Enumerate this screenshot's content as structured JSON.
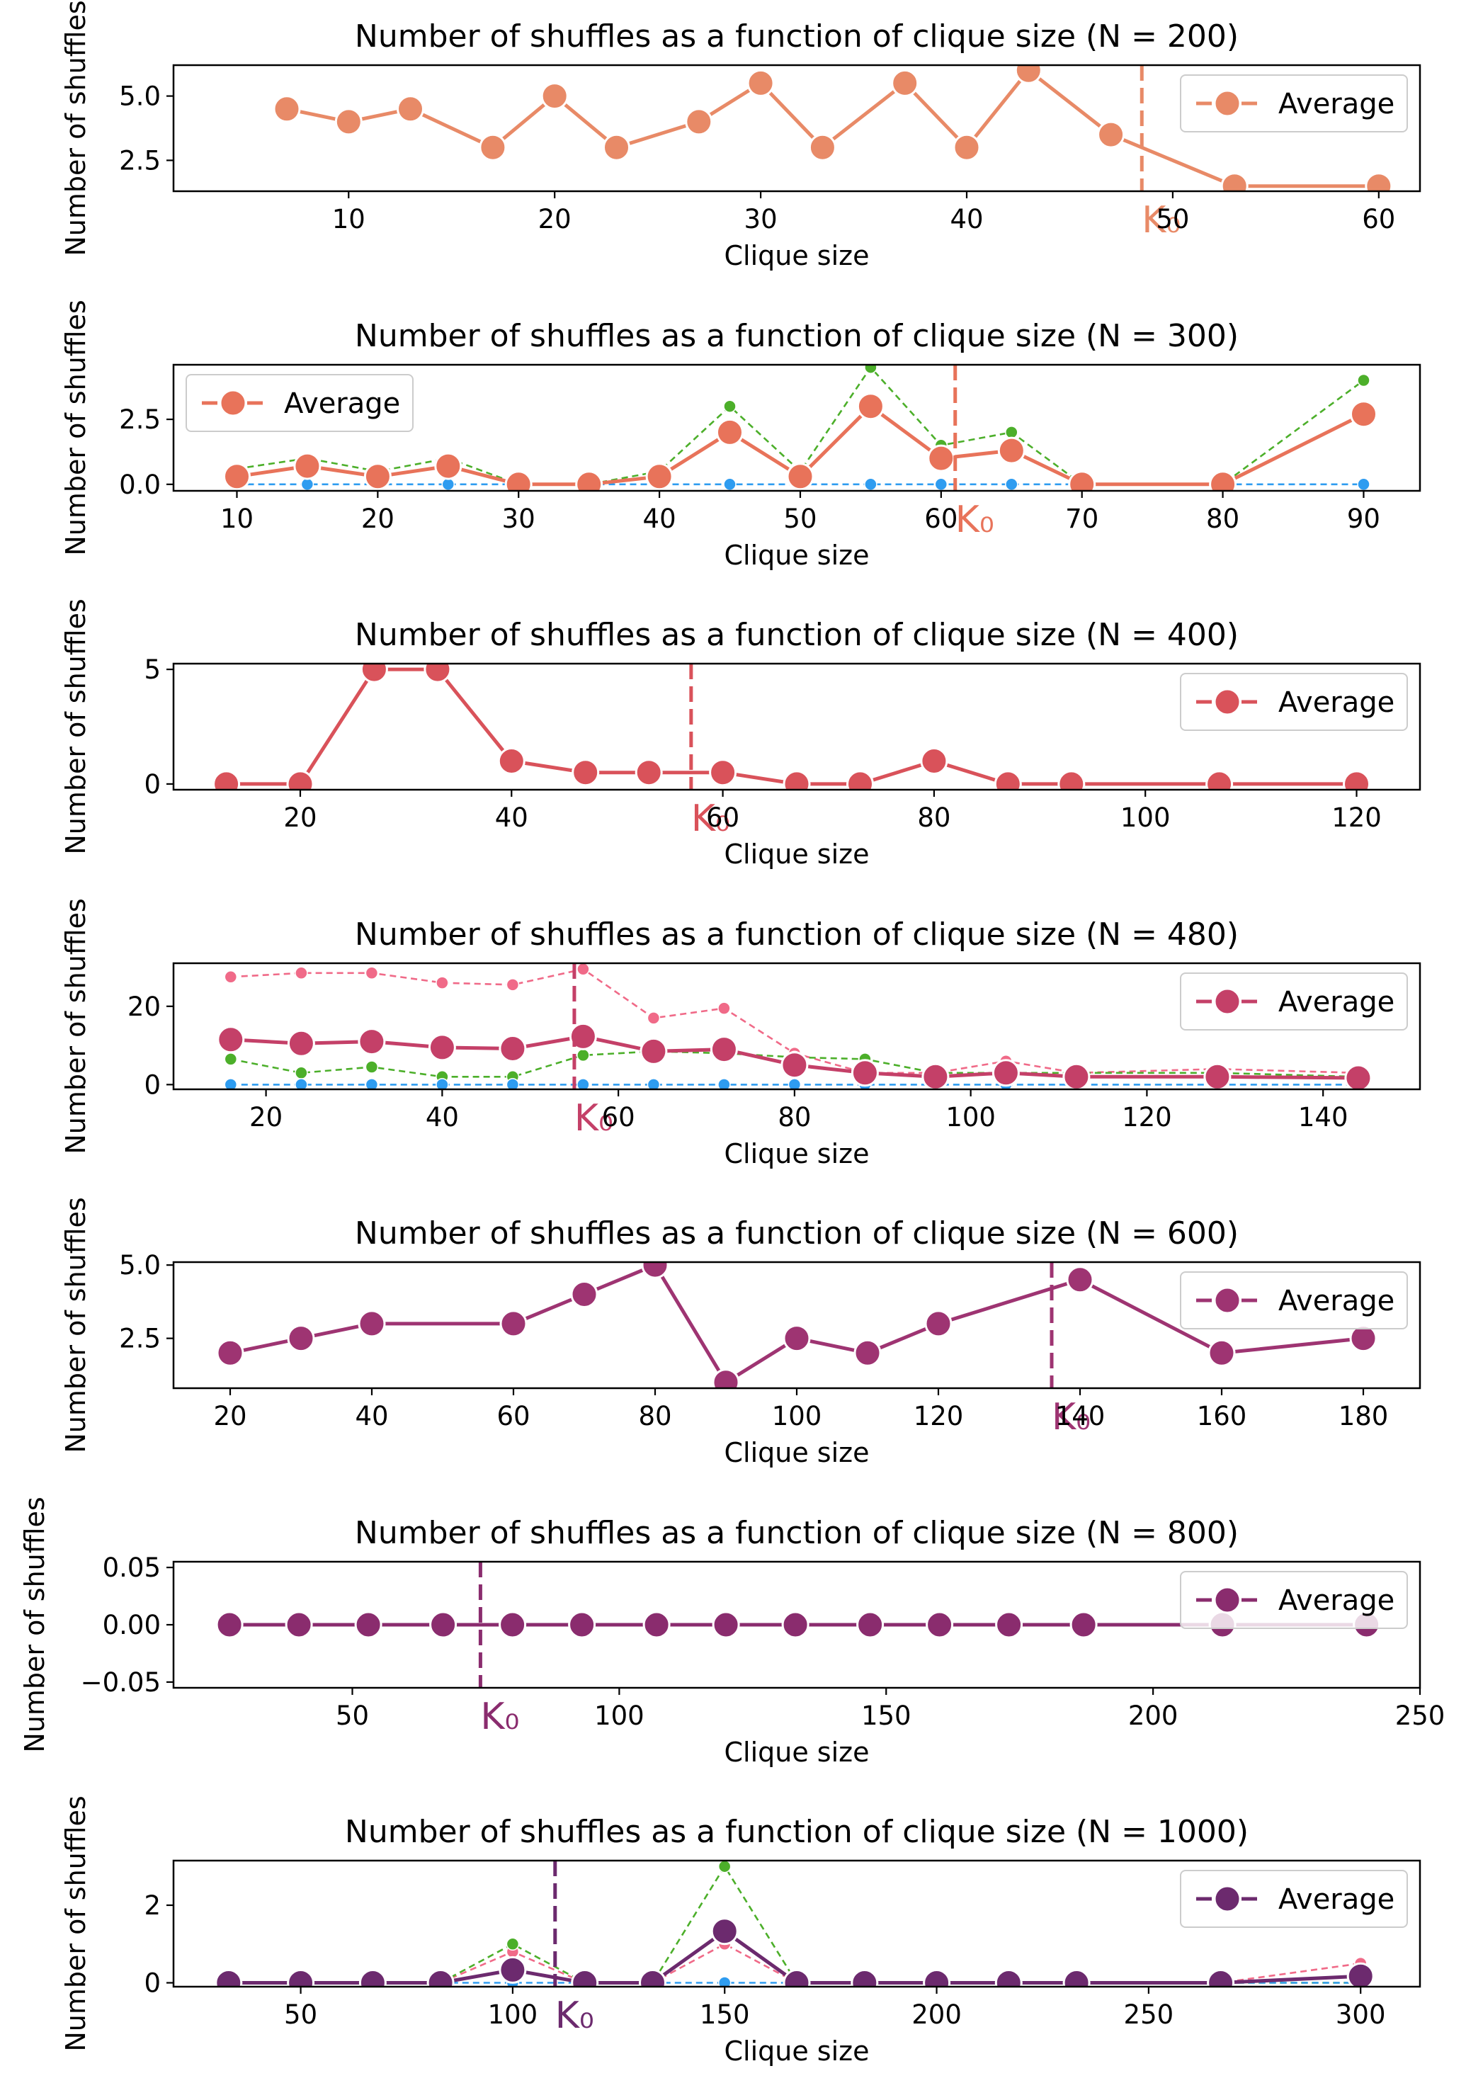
{
  "chart_data": [
    {
      "type": "line",
      "title": "Number of shuffles as a function of clique size (N = 200)",
      "xlabel": "Clique size",
      "ylabel": "Number of shuffles",
      "xlim": [
        1.5,
        62
      ],
      "ylim": [
        1.3,
        6.2
      ],
      "xticks": [
        10,
        20,
        30,
        40,
        50,
        60
      ],
      "yticks": [
        2.5,
        5.0
      ],
      "ytick_labels": [
        "2.5",
        "5.0"
      ],
      "legend": "upper right",
      "legend_label": "Average",
      "k0": 48.5,
      "k0_label": "K₀",
      "color": "#e88a67",
      "series": [
        {
          "name": "Average",
          "role": "average",
          "color": "#e88a67",
          "x": [
            7,
            10,
            13,
            17,
            20,
            23,
            27,
            30,
            33,
            37,
            40,
            43,
            47,
            53,
            60
          ],
          "y": [
            4.5,
            4.0,
            4.5,
            3.0,
            5.0,
            3.0,
            4.0,
            5.5,
            3.0,
            5.5,
            3.0,
            6.0,
            3.5,
            1.5,
            1.5
          ]
        }
      ]
    },
    {
      "type": "line",
      "title": "Number of shuffles as a function of clique size (N = 300)",
      "xlabel": "Clique size",
      "ylabel": "Number of shuffles",
      "xlim": [
        5.5,
        94
      ],
      "ylim": [
        -0.25,
        4.6
      ],
      "xticks": [
        10,
        20,
        30,
        40,
        50,
        60,
        70,
        80,
        90
      ],
      "yticks": [
        0.0,
        2.5
      ],
      "ytick_labels": [
        "0.0",
        "2.5"
      ],
      "legend": "upper left",
      "legend_label": "Average",
      "k0": 61,
      "k0_label": "K₀",
      "color": "#e8735a",
      "series": [
        {
          "role": "upper",
          "color": "#4caf2a",
          "x": [
            10,
            15,
            20,
            25,
            30,
            35,
            40,
            45,
            50,
            55,
            60,
            65,
            70,
            80,
            90
          ],
          "y": [
            0.6,
            1.0,
            0.5,
            1.0,
            0.0,
            0.0,
            0.5,
            3.0,
            0.5,
            4.5,
            1.5,
            2.0,
            0.0,
            0.0,
            4.0
          ]
        },
        {
          "role": "lower",
          "color": "#2e9cf0",
          "x": [
            10,
            15,
            20,
            25,
            30,
            35,
            40,
            45,
            50,
            55,
            60,
            65,
            70,
            80,
            90
          ],
          "y": [
            0,
            0,
            0,
            0,
            0,
            0,
            0,
            0,
            0,
            0,
            0,
            0,
            0,
            0,
            0
          ]
        },
        {
          "name": "Average",
          "role": "average",
          "color": "#e8735a",
          "x": [
            10,
            15,
            20,
            25,
            30,
            35,
            40,
            45,
            50,
            55,
            60,
            65,
            70,
            80,
            90
          ],
          "y": [
            0.3,
            0.7,
            0.3,
            0.7,
            0.0,
            0.0,
            0.3,
            2.0,
            0.3,
            3.0,
            1.0,
            1.3,
            0.0,
            0.0,
            2.7
          ]
        }
      ]
    },
    {
      "type": "line",
      "title": "Number of shuffles as a function of clique size (N = 400)",
      "xlabel": "Clique size",
      "ylabel": "Number of shuffles",
      "xlim": [
        8,
        126
      ],
      "ylim": [
        -0.25,
        5.25
      ],
      "xticks": [
        20,
        40,
        60,
        80,
        100,
        120
      ],
      "yticks": [
        0,
        5
      ],
      "ytick_labels": [
        "0",
        "5"
      ],
      "legend": "upper right",
      "legend_label": "Average",
      "k0": 57,
      "k0_label": "K₀",
      "color": "#d9525a",
      "series": [
        {
          "name": "Average",
          "role": "average",
          "color": "#d9525a",
          "x": [
            13,
            20,
            27,
            33,
            40,
            47,
            53,
            60,
            67,
            73,
            80,
            87,
            93,
            107,
            120
          ],
          "y": [
            0,
            0,
            5,
            5,
            1,
            0.5,
            0.5,
            0.5,
            0,
            0,
            1,
            0,
            0,
            0,
            0
          ]
        }
      ]
    },
    {
      "type": "line",
      "title": "Number of shuffles as a function of clique size (N = 480)",
      "xlabel": "Clique size",
      "ylabel": "Number of shuffles",
      "xlim": [
        9.5,
        151
      ],
      "ylim": [
        -1.2,
        31
      ],
      "xticks": [
        20,
        40,
        60,
        80,
        100,
        120,
        140
      ],
      "yticks": [
        0,
        20
      ],
      "ytick_labels": [
        "0",
        "20"
      ],
      "legend": "upper right",
      "legend_label": "Average",
      "k0": 55,
      "k0_label": "K₀",
      "color": "#c44068",
      "series": [
        {
          "role": "max",
          "color": "#f06a88",
          "x": [
            16,
            24,
            32,
            40,
            48,
            56,
            64,
            72,
            80,
            88,
            96,
            104,
            112,
            128,
            144
          ],
          "y": [
            27.5,
            28.5,
            28.5,
            26,
            25.5,
            29.5,
            17,
            19.5,
            8,
            3,
            3,
            6,
            3,
            4,
            3
          ]
        },
        {
          "role": "upper",
          "color": "#4caf2a",
          "x": [
            16,
            24,
            32,
            40,
            48,
            56,
            64,
            72,
            80,
            88,
            96,
            104,
            112,
            128,
            144
          ],
          "y": [
            6.5,
            3,
            4.5,
            2,
            2,
            7.5,
            8.5,
            8,
            7,
            6.5,
            3,
            3,
            3,
            3,
            2
          ]
        },
        {
          "role": "lower",
          "color": "#2e9cf0",
          "x": [
            16,
            24,
            32,
            40,
            48,
            56,
            64,
            72,
            80,
            88,
            96,
            104,
            112,
            128,
            144
          ],
          "y": [
            0,
            0,
            0,
            0,
            0,
            0,
            0,
            0,
            0,
            0,
            0,
            0,
            0,
            0,
            0
          ]
        },
        {
          "name": "Average",
          "role": "average",
          "color": "#c44068",
          "x": [
            16,
            24,
            32,
            40,
            48,
            56,
            64,
            72,
            80,
            88,
            96,
            104,
            112,
            128,
            144
          ],
          "y": [
            11.5,
            10.5,
            11,
            9.5,
            9.2,
            12.3,
            8.5,
            9,
            5,
            3,
            2,
            3,
            2,
            2,
            1.7
          ]
        }
      ]
    },
    {
      "type": "line",
      "title": "Number of shuffles as a function of clique size (N = 600)",
      "xlabel": "Clique size",
      "ylabel": "Number of shuffles",
      "xlim": [
        12,
        188
      ],
      "ylim": [
        0.8,
        5.1
      ],
      "xticks": [
        20,
        40,
        60,
        80,
        100,
        120,
        140,
        160,
        180
      ],
      "yticks": [
        2.5,
        5.0
      ],
      "ytick_labels": [
        "2.5",
        "5.0"
      ],
      "legend": "upper right",
      "legend_label": "Average",
      "k0": 136,
      "k0_label": "K₀",
      "color": "#9e3472",
      "series": [
        {
          "name": "Average",
          "role": "average",
          "color": "#9e3472",
          "x": [
            20,
            30,
            40,
            60,
            70,
            80,
            90,
            100,
            110,
            120,
            140,
            160,
            180
          ],
          "y": [
            2.0,
            2.5,
            3.0,
            3.0,
            4.0,
            5.0,
            1.0,
            2.5,
            2.0,
            3.0,
            4.5,
            2.0,
            2.5
          ]
        }
      ]
    },
    {
      "type": "line",
      "title": "Number of shuffles as a function of clique size (N = 800)",
      "xlabel": "Clique size",
      "ylabel": "Number of shuffles",
      "xlim": [
        16.5,
        250
      ],
      "ylim": [
        -0.055,
        0.055
      ],
      "xticks": [
        50,
        100,
        150,
        200,
        250
      ],
      "yticks": [
        -0.05,
        0.0,
        0.05
      ],
      "ytick_labels": [
        "−0.05",
        "0.00",
        "0.05"
      ],
      "legend": "upper right",
      "legend_label": "Average",
      "k0": 74,
      "k0_label": "K₀",
      "color": "#8a2c6e",
      "series": [
        {
          "name": "Average",
          "role": "average",
          "color": "#8a2c6e",
          "x": [
            27,
            40,
            53,
            67,
            80,
            93,
            107,
            120,
            133,
            147,
            160,
            173,
            187,
            213,
            240
          ],
          "y": [
            0,
            0,
            0,
            0,
            0,
            0,
            0,
            0,
            0,
            0,
            0,
            0,
            0,
            0,
            0
          ]
        }
      ]
    },
    {
      "type": "line",
      "title": "Number of shuffles as a function of clique size (N = 1000)",
      "xlabel": "Clique size",
      "ylabel": "Number of shuffles",
      "xlim": [
        20,
        314
      ],
      "ylim": [
        -0.1,
        3.15
      ],
      "xticks": [
        50,
        100,
        150,
        200,
        250,
        300
      ],
      "yticks": [
        0,
        2
      ],
      "ytick_labels": [
        "0",
        "2"
      ],
      "legend": "upper right",
      "legend_label": "Average",
      "k0": 110,
      "k0_label": "K₀",
      "color": "#6c2a6e",
      "series": [
        {
          "role": "max",
          "color": "#f06a88",
          "x": [
            33,
            50,
            67,
            83,
            100,
            117,
            133,
            150,
            167,
            183,
            200,
            217,
            233,
            267,
            300
          ],
          "y": [
            0,
            0,
            0,
            0,
            0.8,
            0,
            0,
            1.0,
            0,
            0,
            0,
            0,
            0,
            0,
            0.5
          ]
        },
        {
          "role": "upper",
          "color": "#4caf2a",
          "x": [
            33,
            50,
            67,
            83,
            100,
            117,
            133,
            150,
            167,
            183,
            200,
            217,
            233,
            267,
            300
          ],
          "y": [
            0,
            0,
            0,
            0,
            1.0,
            0,
            0,
            3.0,
            0,
            0,
            0,
            0,
            0,
            0,
            0
          ]
        },
        {
          "role": "lower",
          "color": "#2e9cf0",
          "x": [
            33,
            50,
            67,
            83,
            100,
            117,
            133,
            150,
            167,
            183,
            200,
            217,
            233,
            267,
            300
          ],
          "y": [
            0,
            0,
            0,
            0,
            0,
            0,
            0,
            0,
            0,
            0,
            0,
            0,
            0,
            0,
            0
          ]
        },
        {
          "name": "Average",
          "role": "average",
          "color": "#6c2a6e",
          "x": [
            33,
            50,
            67,
            83,
            100,
            117,
            133,
            150,
            167,
            183,
            200,
            217,
            233,
            267,
            300
          ],
          "y": [
            0,
            0,
            0,
            0,
            0.33,
            0,
            0,
            1.33,
            0,
            0,
            0,
            0,
            0,
            0,
            0.17
          ]
        }
      ]
    }
  ]
}
